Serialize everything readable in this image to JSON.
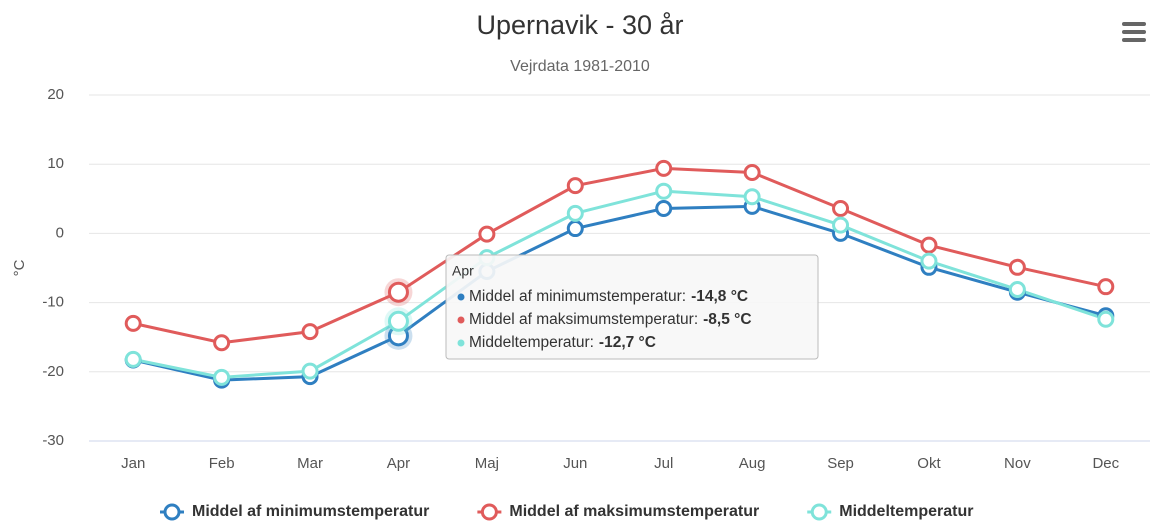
{
  "chart_data": {
    "type": "line",
    "title": "Upernavik - 30 år",
    "subtitle": "Vejrdata 1981-2010",
    "y_label": "°C",
    "categories": [
      "Jan",
      "Feb",
      "Mar",
      "Apr",
      "Maj",
      "Jun",
      "Jul",
      "Aug",
      "Sep",
      "Okt",
      "Nov",
      "Dec"
    ],
    "series": [
      {
        "name": "Middel af minimumstemperatur",
        "color": "#2f7fc1",
        "values": [
          -18.3,
          -21.2,
          -20.7,
          -14.8,
          -5.5,
          0.7,
          3.6,
          3.9,
          0.0,
          -4.9,
          -8.5,
          -11.9
        ]
      },
      {
        "name": "Middel af maksimumstemperatur",
        "color": "#e05b5b",
        "values": [
          -13.0,
          -15.8,
          -14.2,
          -8.5,
          -0.1,
          6.9,
          9.4,
          8.8,
          3.6,
          -1.7,
          -4.9,
          -7.7
        ]
      },
      {
        "name": "Middeltemperatur",
        "color": "#7fe3da",
        "values": [
          -18.2,
          -20.8,
          -19.9,
          -12.7,
          -3.5,
          2.9,
          6.1,
          5.3,
          1.2,
          -4.0,
          -8.1,
          -12.4
        ]
      }
    ],
    "ylim": [
      -30,
      20
    ],
    "yticks": [
      -30,
      -20,
      -10,
      0,
      10,
      20
    ],
    "grid": true,
    "legend": "bottom",
    "tooltip": {
      "category": "Apr",
      "rows": [
        {
          "label": "Middel af minimumstemperatur:",
          "value": "-14,8 °C"
        },
        {
          "label": "Middel af maksimumstemperatur:",
          "value": "-8,5 °C"
        },
        {
          "label": "Middeltemperatur:",
          "value": "-12,7 °C"
        }
      ]
    }
  }
}
